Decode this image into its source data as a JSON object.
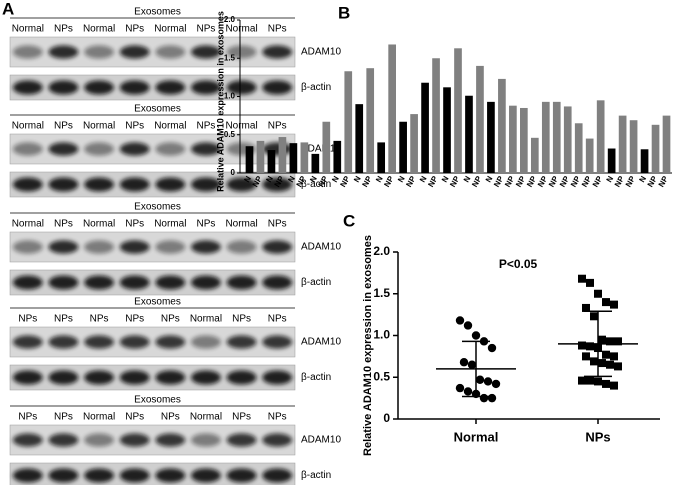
{
  "panels": [
    "A",
    "B",
    "C"
  ],
  "blots": [
    {
      "header": "Exosomes",
      "lanes": [
        "Normal",
        "NPs",
        "Normal",
        "NPs",
        "Normal",
        "NPs",
        "Normal",
        "NPs"
      ],
      "bands": [
        "ADAM10",
        "β-actin"
      ]
    },
    {
      "header": "Exosomes",
      "lanes": [
        "Normal",
        "NPs",
        "Normal",
        "NPs",
        "Normal",
        "NPs",
        "Normal",
        "NPs"
      ],
      "bands": [
        "ADAM10",
        "β-actin"
      ]
    },
    {
      "header": "Exosomes",
      "lanes": [
        "Normal",
        "NPs",
        "Normal",
        "NPs",
        "Normal",
        "NPs",
        "Normal",
        "NPs"
      ],
      "bands": [
        "ADAM10",
        "β-actin"
      ]
    },
    {
      "header": "Exosomes",
      "lanes": [
        "NPs",
        "NPs",
        "NPs",
        "NPs",
        "NPs",
        "Normal",
        "NPs",
        "NPs"
      ],
      "bands": [
        "ADAM10",
        "β-actin"
      ]
    },
    {
      "header": "Exosomes",
      "lanes": [
        "NPs",
        "NPs",
        "Normal",
        "NPs",
        "NPs",
        "Normal",
        "NPs",
        "NPs"
      ],
      "bands": [
        "ADAM10",
        "β-actin"
      ]
    }
  ],
  "chart_data": [
    {
      "type": "bar",
      "ylabel": "Relative ADAM10 expression in exosomes",
      "categories": [
        "N",
        "NP",
        "N",
        "NP",
        "N",
        "NP",
        "N",
        "NP",
        "N",
        "NP",
        "N",
        "NP",
        "N",
        "NP",
        "N",
        "NP",
        "N",
        "NP",
        "N",
        "NP",
        "N",
        "NP",
        "N",
        "NP",
        "NP",
        "NP",
        "NP",
        "NP",
        "NP",
        "NP",
        "NP",
        "NP",
        "NP",
        "N",
        "NP",
        "NP",
        "N",
        "NP",
        "NP"
      ],
      "values": [
        0.35,
        0.42,
        0.3,
        0.47,
        0.39,
        0.4,
        0.25,
        0.67,
        0.42,
        1.33,
        0.9,
        1.37,
        0.4,
        1.68,
        0.67,
        0.77,
        1.18,
        1.5,
        1.12,
        1.63,
        1.01,
        1.4,
        0.93,
        1.23,
        0.88,
        0.85,
        0.46,
        0.93,
        0.93,
        0.87,
        0.65,
        0.45,
        0.95,
        0.32,
        0.75,
        0.69,
        0.31,
        0.63,
        0.75
      ],
      "colors": {
        "N": "#000000",
        "NP": "#808080"
      },
      "ylim": [
        0,
        2.0
      ],
      "yticks": [
        0,
        0.5,
        {
          "value": 1,
          "label": "1.0"
        },
        1.5,
        {
          "value": 2,
          "label": "2.0"
        }
      ]
    },
    {
      "type": "dot",
      "ylabel": "Relative ADAM10 expression in exosomes",
      "annotation": "P<0.05",
      "series": [
        {
          "name": "Normal",
          "marker": "circle",
          "color": "#000000",
          "mean": 0.6,
          "error": 0.33,
          "values": [
            1.18,
            1.12,
            1.0,
            0.93,
            0.85,
            0.68,
            0.65,
            0.47,
            0.45,
            0.42,
            0.37,
            0.33,
            0.3,
            0.25,
            0.25
          ]
        },
        {
          "name": "NPs",
          "marker": "square",
          "color": "#000000",
          "mean": 0.9,
          "error": 0.39,
          "values": [
            1.68,
            1.63,
            1.5,
            1.4,
            1.37,
            1.33,
            1.23,
            0.95,
            0.93,
            0.93,
            0.88,
            0.87,
            0.85,
            0.77,
            0.75,
            0.75,
            0.69,
            0.67,
            0.65,
            0.63,
            0.46,
            0.46,
            0.45,
            0.42,
            0.4
          ]
        }
      ],
      "ylim": [
        0,
        2.0
      ],
      "yticks": [
        0,
        0.5,
        {
          "value": 1,
          "label": "1.0"
        },
        1.5,
        {
          "value": 2,
          "label": "2.0"
        }
      ]
    }
  ]
}
